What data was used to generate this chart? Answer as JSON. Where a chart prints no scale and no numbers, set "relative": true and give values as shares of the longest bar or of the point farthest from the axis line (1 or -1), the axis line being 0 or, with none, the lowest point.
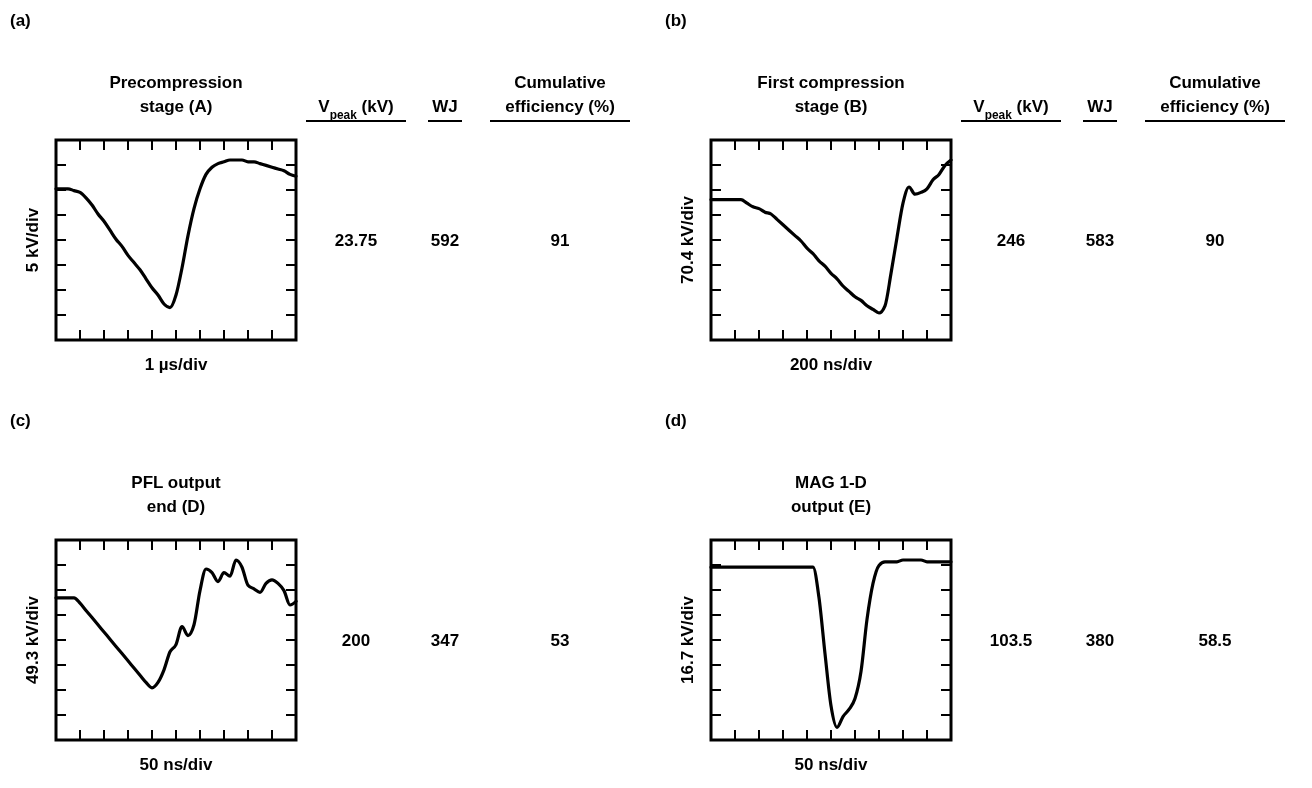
{
  "chart_data": [
    {
      "type": "line",
      "relative": true,
      "title": "Precompression stage (A)",
      "xlabel": "1 µs/div",
      "ylabel": "5 kV/div",
      "annotations": [
        "(a)",
        "V$_{peak}$ (kV)",
        "WJ",
        "Cumulative efficiency (%)",
        "23.75",
        "592",
        "91"
      ],
      "categories": [
        null,
        null,
        null,
        null,
        null,
        null,
        null,
        null,
        null,
        null,
        null,
        null,
        null,
        null,
        null,
        null,
        null,
        null,
        null,
        null,
        null,
        null,
        null,
        null,
        null,
        null,
        null,
        null,
        null,
        null,
        null,
        null,
        null,
        null,
        null,
        null,
        null,
        null,
        null,
        null,
        null
      ],
      "series": [
        {
          "color": "#000000",
          "values": [
            0.84,
            0.84,
            0.84,
            0.83,
            0.82,
            0.79,
            0.75,
            0.7,
            0.66,
            0.61,
            0.56,
            0.52,
            0.47,
            0.43,
            0.39,
            0.34,
            0.29,
            0.25,
            0.2,
            0.18,
            0.25,
            0.4,
            0.58,
            0.73,
            0.84,
            0.92,
            0.96,
            0.98,
            0.99,
            1.0,
            1.0,
            1.0,
            0.99,
            0.99,
            0.98,
            0.97,
            0.96,
            0.95,
            0.94,
            0.92,
            0.91
          ]
        }
      ]
    },
    {
      "type": "line",
      "relative": true,
      "title": "First compression stage (B)",
      "xlabel": "200 ns/div",
      "ylabel": "70.4 kV/div",
      "annotations": [
        "(b)",
        "V$_{peak}$ (kV)",
        "WJ",
        "Cumulative efficiency (%)",
        "246",
        "583",
        "90"
      ],
      "categories": [
        null,
        null,
        null,
        null,
        null,
        null,
        null,
        null,
        null,
        null,
        null,
        null,
        null,
        null,
        null,
        null,
        null,
        null,
        null,
        null,
        null,
        null,
        null,
        null,
        null,
        null,
        null,
        null,
        null,
        null,
        null,
        null,
        null,
        null,
        null,
        null,
        null,
        null,
        null,
        null,
        null
      ],
      "series": [
        {
          "color": "#000000",
          "values": [
            0.78,
            0.78,
            0.78,
            0.78,
            0.78,
            0.78,
            0.76,
            0.74,
            0.73,
            0.71,
            0.7,
            0.67,
            0.64,
            0.61,
            0.58,
            0.55,
            0.51,
            0.48,
            0.44,
            0.41,
            0.37,
            0.34,
            0.3,
            0.27,
            0.24,
            0.22,
            0.19,
            0.17,
            0.15,
            0.19,
            0.37,
            0.57,
            0.76,
            0.85,
            0.81,
            0.82,
            0.84,
            0.89,
            0.92,
            0.97,
            1.0
          ]
        }
      ]
    },
    {
      "type": "line",
      "relative": true,
      "title": "PFL output end (D)",
      "xlabel": "50 ns/div",
      "ylabel": "49.3 kV/div",
      "annotations": [
        "(c)",
        "200",
        "347",
        "53"
      ],
      "categories": [
        null,
        null,
        null,
        null,
        null,
        null,
        null,
        null,
        null,
        null,
        null,
        null,
        null,
        null,
        null,
        null,
        null,
        null,
        null,
        null,
        null,
        null,
        null,
        null,
        null,
        null,
        null,
        null,
        null,
        null,
        null,
        null,
        null,
        null,
        null,
        null,
        null,
        null,
        null,
        null,
        null
      ],
      "series": [
        {
          "color": "#000000",
          "values": [
            0.79,
            0.79,
            0.79,
            0.79,
            0.76,
            0.72,
            0.68,
            0.64,
            0.6,
            0.56,
            0.52,
            0.48,
            0.44,
            0.4,
            0.36,
            0.32,
            0.29,
            0.32,
            0.39,
            0.49,
            0.53,
            0.63,
            0.58,
            0.64,
            0.83,
            0.95,
            0.93,
            0.88,
            0.93,
            0.91,
            1.0,
            0.96,
            0.86,
            0.84,
            0.82,
            0.87,
            0.89,
            0.87,
            0.83,
            0.75,
            0.77
          ]
        }
      ]
    },
    {
      "type": "line",
      "relative": true,
      "title": "MAG 1-D output (E)",
      "xlabel": "50 ns/div",
      "ylabel": "16.7 kV/div",
      "annotations": [
        "(d)",
        "103.5",
        "380",
        "58.5"
      ],
      "categories": [
        null,
        null,
        null,
        null,
        null,
        null,
        null,
        null,
        null,
        null,
        null,
        null,
        null,
        null,
        null,
        null,
        null,
        null,
        null,
        null,
        null,
        null,
        null,
        null,
        null,
        null,
        null,
        null,
        null,
        null,
        null,
        null,
        null,
        null,
        null,
        null,
        null,
        null,
        null,
        null,
        null
      ],
      "series": [
        {
          "color": "#000000",
          "values": [
            0.96,
            0.96,
            0.96,
            0.96,
            0.96,
            0.96,
            0.96,
            0.96,
            0.96,
            0.96,
            0.96,
            0.96,
            0.96,
            0.96,
            0.96,
            0.96,
            0.96,
            0.96,
            0.79,
            0.48,
            0.19,
            0.07,
            0.13,
            0.17,
            0.23,
            0.38,
            0.67,
            0.87,
            0.97,
            0.99,
            0.99,
            0.99,
            1.0,
            1.0,
            1.0,
            1.0,
            0.99,
            0.99,
            0.99,
            0.99,
            0.99
          ]
        }
      ]
    }
  ]
}
